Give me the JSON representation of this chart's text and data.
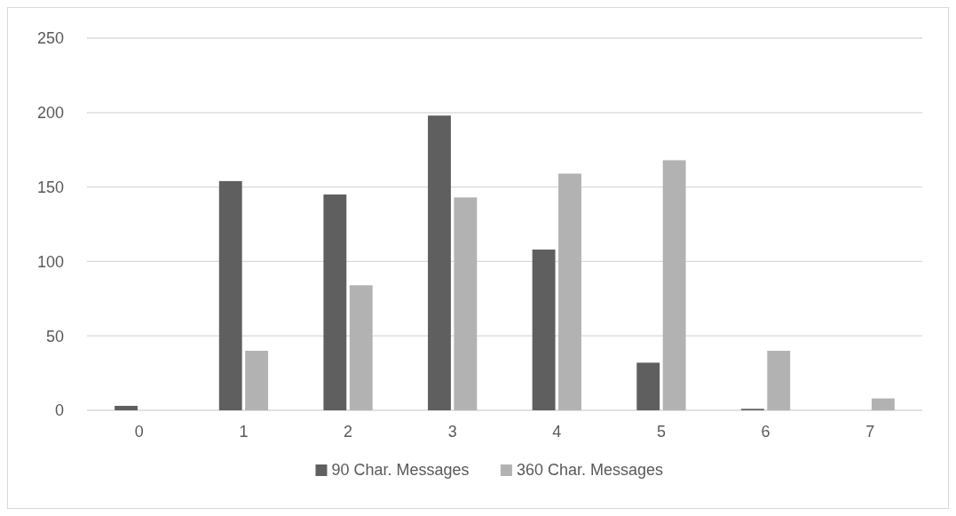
{
  "chart_data": {
    "type": "bar",
    "categories": [
      "0",
      "1",
      "2",
      "3",
      "4",
      "5",
      "6",
      "7"
    ],
    "series": [
      {
        "name": "90 Char. Messages",
        "color": "#5f5f5f",
        "values": [
          3,
          154,
          145,
          198,
          108,
          32,
          1,
          0
        ]
      },
      {
        "name": "360 Char. Messages",
        "color": "#b2b2b2",
        "values": [
          0,
          40,
          84,
          143,
          159,
          168,
          40,
          8
        ]
      }
    ],
    "ylim": [
      0,
      250
    ],
    "yticks": [
      0,
      50,
      100,
      150,
      200,
      250
    ],
    "grid": "y",
    "legend": "bottom"
  }
}
